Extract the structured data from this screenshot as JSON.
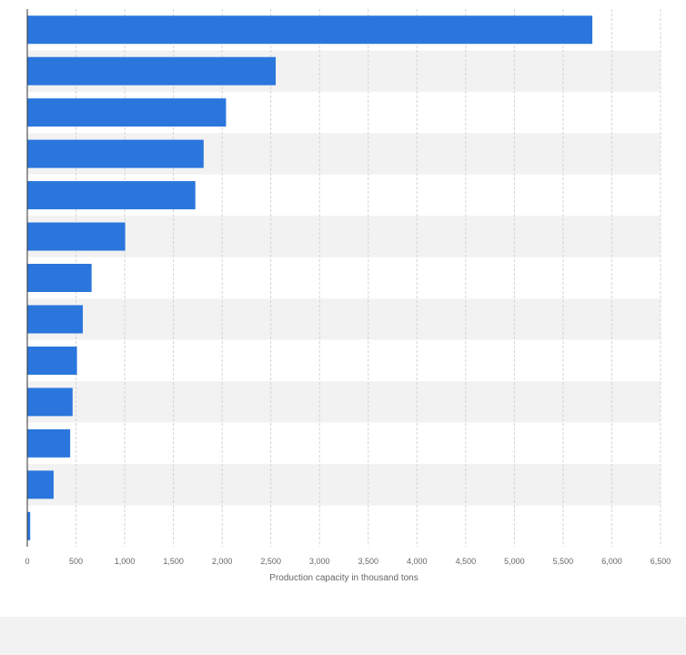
{
  "chart_data": {
    "type": "bar",
    "orientation": "horizontal",
    "title": "",
    "xlabel": "Production capacity in thousand tons",
    "ylabel": "",
    "categories": [
      "",
      "",
      "",
      "",
      "",
      "",
      "",
      "",
      "",
      "",
      "",
      "",
      ""
    ],
    "values": [
      5800,
      2550,
      2040,
      1810,
      1725,
      1005,
      660,
      570,
      510,
      465,
      440,
      270,
      30
    ],
    "xlim": [
      0,
      6500
    ],
    "xticks": [
      0,
      500,
      1000,
      1500,
      2000,
      2500,
      3000,
      3500,
      4000,
      4500,
      5000,
      5500,
      6000,
      6500
    ],
    "xtick_labels": [
      "0",
      "500",
      "1,000",
      "1,500",
      "2,000",
      "2,500",
      "3,000",
      "3,500",
      "4,000",
      "4,500",
      "5,000",
      "5,500",
      "6,000",
      "6,500"
    ],
    "grid": "vertical dashed",
    "legend": "none",
    "bar_color": "#2a76dd",
    "band_colors": [
      "#ffffff",
      "#f2f2f2"
    ]
  }
}
